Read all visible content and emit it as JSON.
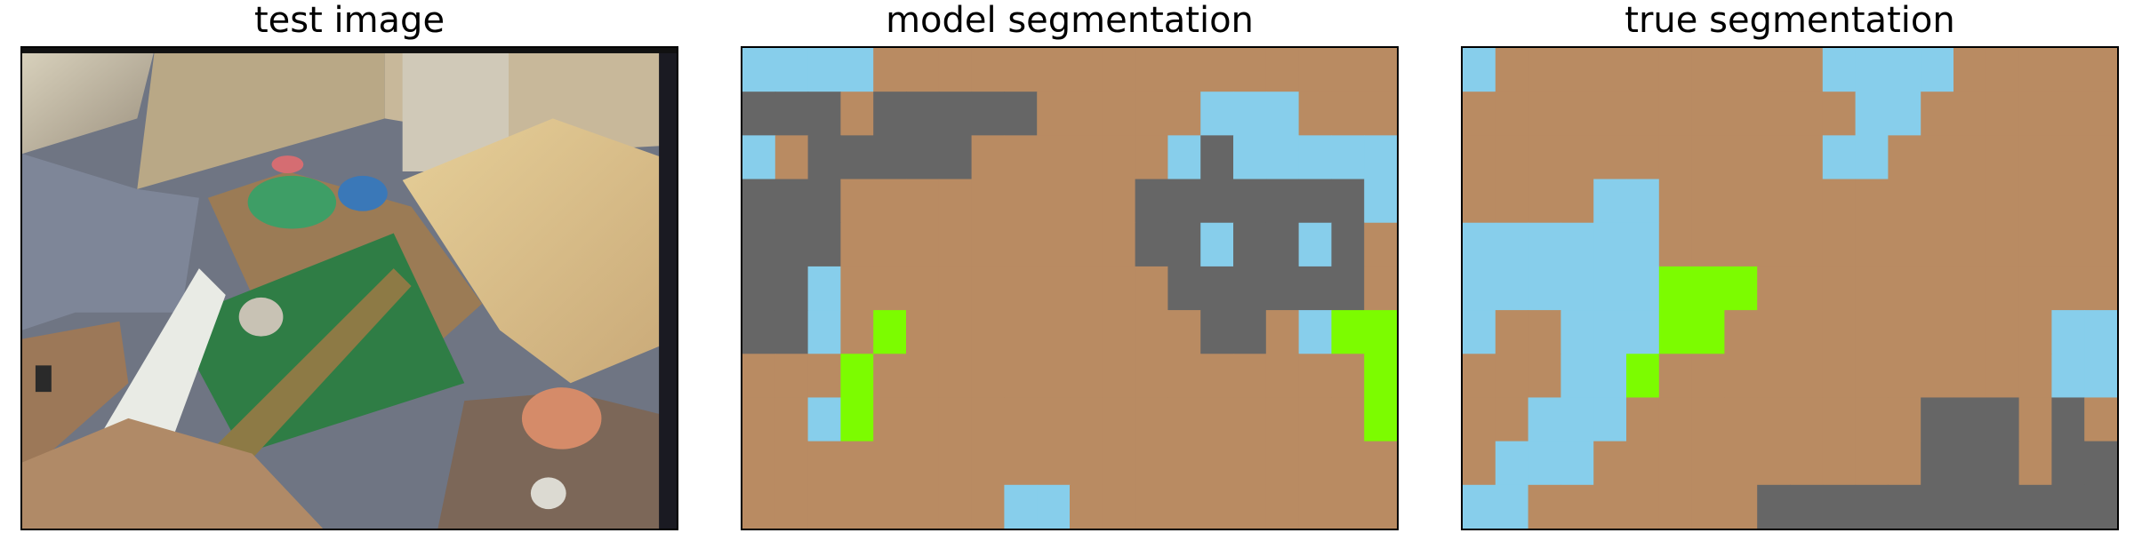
{
  "panels": [
    {
      "title": "test image"
    },
    {
      "title": "model segmentation"
    },
    {
      "title": "true segmentation"
    }
  ],
  "legend_colors": {
    "floor": "#b98b62",
    "sky_blue": "#87ceeb",
    "gray": "#666666",
    "green": "#7cfc00"
  },
  "model_segmentation": {
    "rows": [
      "BBBBFFFFFFFFFFFFFFFF",
      "GGGFGGGGGFFFFFBBBFFF",
      "BFGGGGGFFFFFFBGBBBBB",
      "GGGFFFFFFFFFGGGGGGGB",
      "GGGFFFFFFFFFGGBGGBGF",
      "GGBFFFFFFFFFFGGGGGGF",
      "GGBFLFFFFFFFFFGGFBLL",
      "FFFLFFFFFFFFFFFFFFFL",
      "FFBLFFFFFFFFFFFFFFFL",
      "FFFFFFFFFFFFFFFFFFFF",
      "FFFFFFFFBBFFFFFFFFFF"
    ]
  },
  "true_segmentation": {
    "rows": [
      "BFFFFFFFFFFBBBBFFFFF",
      "FFFFFFFFFFFFBBFFFFFF",
      "FFFFFFFFFFFBBFFFFFFF",
      "FFFFBBFFFFFFFFFFFFFF",
      "BBBBBBFFFFFFFFFFFFFF",
      "BBBBBBLLLFFFFFFFFFFF",
      "BFFBBBLLFFFFFFFFFFBB",
      "FFFBBLFFFFFFFFFFFFBB",
      "FFBBBFFFFFFFFFGGGFGF",
      "FBBBFFFFFFFFFFGGGFGG",
      "BBFFFFFFFGGGGGGGGGGG"
    ]
  }
}
